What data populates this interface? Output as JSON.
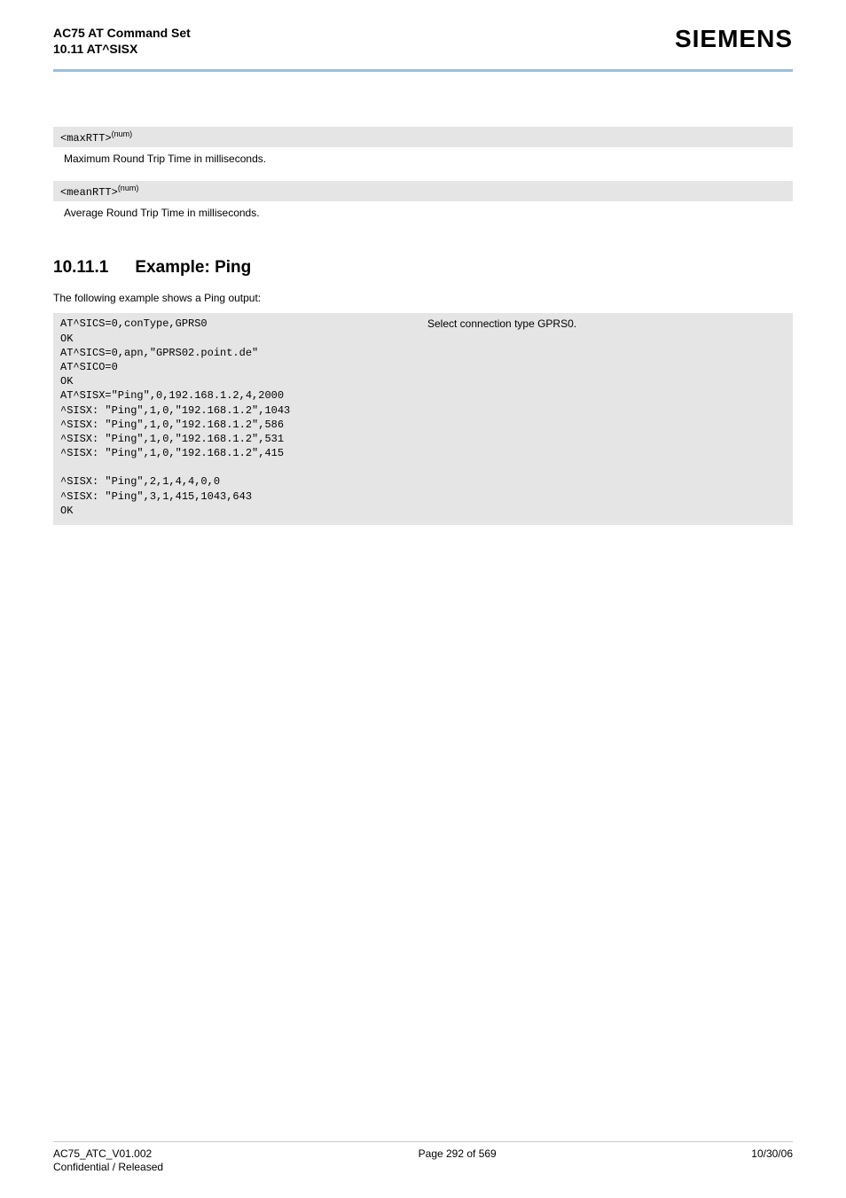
{
  "header": {
    "title_line1": "AC75 AT Command Set",
    "title_line2": "10.11 AT^SISX",
    "logo_text": "SIEMENS",
    "divider_color": "#9bbfdb"
  },
  "params": [
    {
      "code": "<maxRTT>",
      "sup": "(num)",
      "desc": "Maximum Round Trip Time in milliseconds."
    },
    {
      "code": "<meanRTT>",
      "sup": "(num)",
      "desc": "Average Round Trip Time in milliseconds."
    }
  ],
  "section": {
    "num": "10.11.1",
    "title": "Example: Ping",
    "intro": "The following example shows a Ping output:"
  },
  "example": {
    "left_lines": [
      "AT^SICS=0,conType,GPRS0",
      "OK",
      "AT^SICS=0,apn,\"GPRS02.point.de\"",
      "AT^SICO=0",
      "OK",
      "AT^SISX=\"Ping\",0,192.168.1.2,4,2000",
      "^SISX: \"Ping\",1,0,\"192.168.1.2\",1043",
      "^SISX: \"Ping\",1,0,\"192.168.1.2\",586",
      "^SISX: \"Ping\",1,0,\"192.168.1.2\",531",
      "^SISX: \"Ping\",1,0,\"192.168.1.2\",415",
      "",
      "^SISX: \"Ping\",2,1,4,4,0,0",
      "^SISX: \"Ping\",3,1,415,1043,643",
      "OK"
    ],
    "right_lines": [
      "Select connection type GPRS0.",
      "",
      "",
      "",
      "",
      "",
      "",
      "",
      "",
      "",
      "",
      "",
      "",
      ""
    ],
    "bg_color": "#e5e5e5",
    "mono_font": "Courier New"
  },
  "footer": {
    "left_line1": "AC75_ATC_V01.002",
    "left_line2": "Confidential / Released",
    "center": "Page 292 of 569",
    "right": "10/30/06"
  },
  "colors": {
    "page_bg": "#ffffff",
    "text": "#000000",
    "param_bg": "#e5e5e5"
  }
}
